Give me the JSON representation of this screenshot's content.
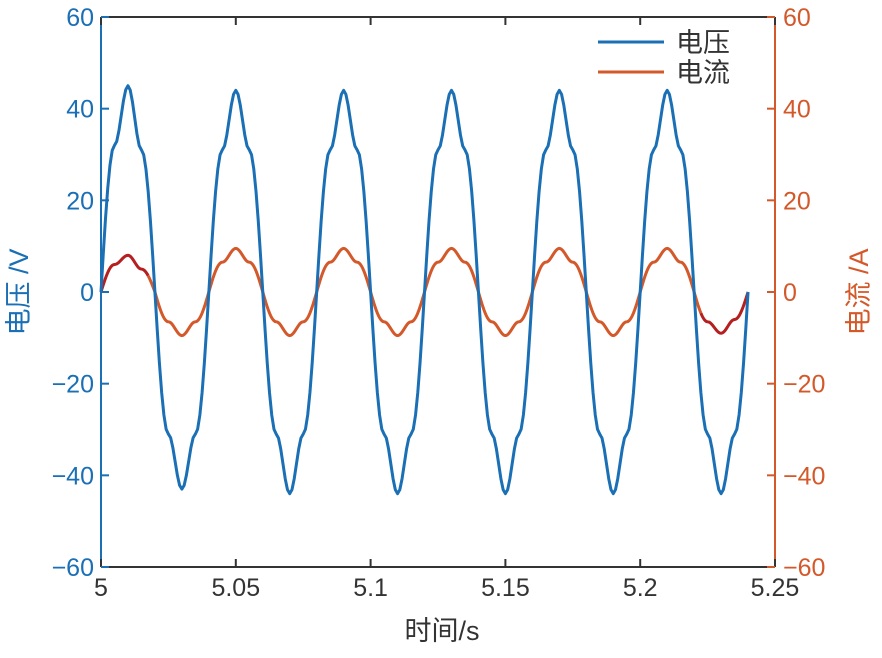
{
  "chart_data": {
    "type": "line",
    "xlabel": "时间/s",
    "ylabel_left": "电压 /V",
    "ylabel_right": "电流 /A",
    "xlim": [
      5,
      5.25
    ],
    "ylim_left": [
      -60,
      60
    ],
    "ylim_right": [
      -60,
      60
    ],
    "xticks": [
      5,
      5.05,
      5.1,
      5.15,
      5.2,
      5.25
    ],
    "xtick_labels": [
      "5",
      "5.05",
      "5.1",
      "5.15",
      "5.2",
      "5.25"
    ],
    "yticks": [
      -60,
      -40,
      -20,
      0,
      20,
      40,
      60
    ],
    "ytick_labels_left": [
      "−60",
      "−40",
      "−20",
      "0",
      "20",
      "40",
      "60"
    ],
    "ytick_labels_right": [
      "−60",
      "−40",
      "−20",
      "0",
      "20",
      "40",
      "60"
    ],
    "grid": false,
    "legend_position": "top-right",
    "colors": {
      "voltage": "#1a6fb5",
      "current": "#d4592a",
      "current_transient": "#b51f1f",
      "axis_left": "#1a6fb5",
      "axis_right": "#d4592a",
      "axis_bottom": "#333333"
    },
    "series": [
      {
        "name": "电压",
        "axis": "left",
        "x": [
          5.0,
          5.005,
          5.01,
          5.015,
          5.02,
          5.025,
          5.03,
          5.035,
          5.04,
          5.045,
          5.05,
          5.055,
          5.06,
          5.065,
          5.07,
          5.075,
          5.08,
          5.085,
          5.09,
          5.095,
          5.1,
          5.105,
          5.11,
          5.115,
          5.12,
          5.125,
          5.13,
          5.135,
          5.14,
          5.145,
          5.15,
          5.155,
          5.16,
          5.165,
          5.17,
          5.175,
          5.18,
          5.185,
          5.19,
          5.195,
          5.2,
          5.205,
          5.21,
          5.215,
          5.22,
          5.225,
          5.23,
          5.235,
          5.24
        ],
        "y": [
          0,
          32,
          45,
          31,
          0,
          -31,
          -43,
          -31,
          0,
          31,
          44,
          31,
          0,
          -31,
          -44,
          -31,
          0,
          31,
          44,
          31,
          0,
          -31,
          -44,
          -31,
          0,
          31,
          44,
          31,
          0,
          -31,
          -44,
          -31,
          0,
          31,
          44,
          31,
          0,
          -31,
          -44,
          -31,
          0,
          31,
          44,
          31,
          0,
          -31,
          -44,
          -31,
          0
        ]
      },
      {
        "name": "电流",
        "axis": "right",
        "x": [
          5.0,
          5.005,
          5.01,
          5.015,
          5.02,
          5.025,
          5.03,
          5.035,
          5.04,
          5.045,
          5.05,
          5.055,
          5.06,
          5.065,
          5.07,
          5.075,
          5.08,
          5.085,
          5.09,
          5.095,
          5.1,
          5.105,
          5.11,
          5.115,
          5.12,
          5.125,
          5.13,
          5.135,
          5.14,
          5.145,
          5.15,
          5.155,
          5.16,
          5.165,
          5.17,
          5.175,
          5.18,
          5.185,
          5.19,
          5.195,
          5.2,
          5.205,
          5.21,
          5.215,
          5.22,
          5.225,
          5.23,
          5.235,
          5.24
        ],
        "y": [
          0,
          6,
          8,
          5,
          0,
          -6.5,
          -9.5,
          -6.5,
          0,
          6.5,
          9.5,
          6.5,
          0,
          -6.5,
          -9.5,
          -6.5,
          0,
          6.5,
          9.5,
          6.5,
          0,
          -6.5,
          -9.5,
          -6.5,
          0,
          6.5,
          9.5,
          6.5,
          0,
          -6.5,
          -9.5,
          -6.5,
          0,
          6.5,
          9.5,
          6.5,
          0,
          -6.5,
          -9.5,
          -6.5,
          0,
          6.5,
          9.5,
          6.5,
          0,
          -6.5,
          -9,
          -6,
          0
        ]
      }
    ]
  }
}
